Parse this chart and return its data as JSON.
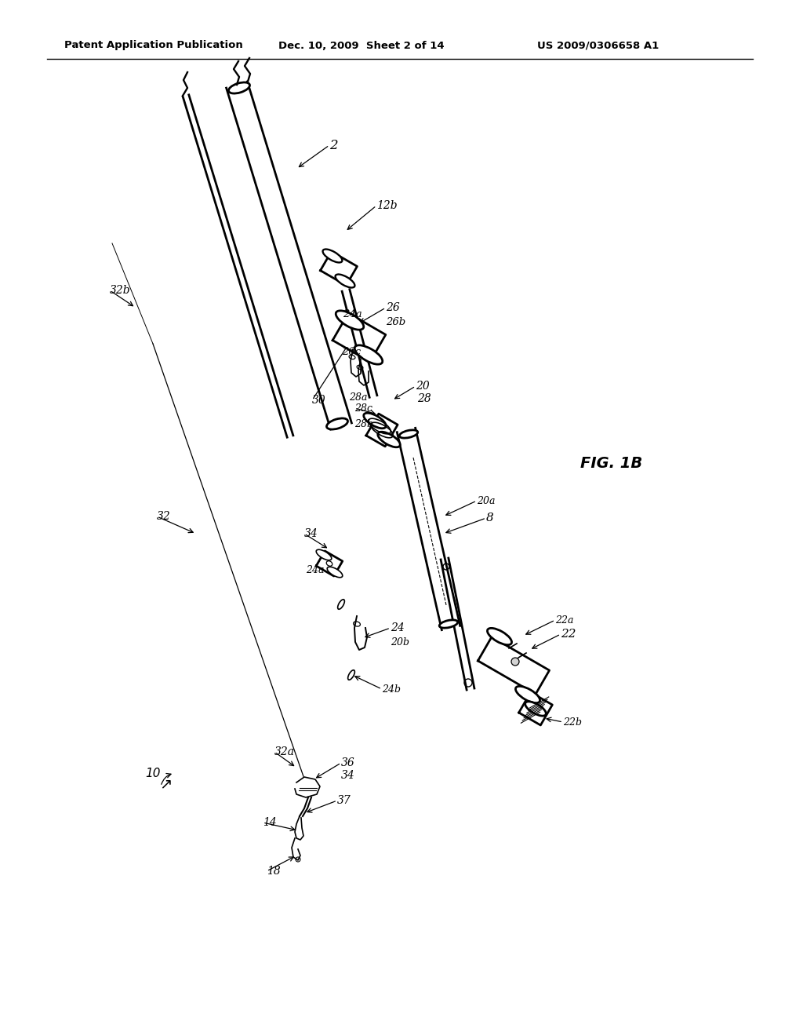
{
  "bg_color": "#ffffff",
  "header_left": "Patent Application Publication",
  "header_center": "Dec. 10, 2009  Sheet 2 of 14",
  "header_right": "US 2009/0306658 A1",
  "fig_label": "FIG. 1B",
  "figsize": [
    10.24,
    13.2
  ],
  "dpi": 100
}
